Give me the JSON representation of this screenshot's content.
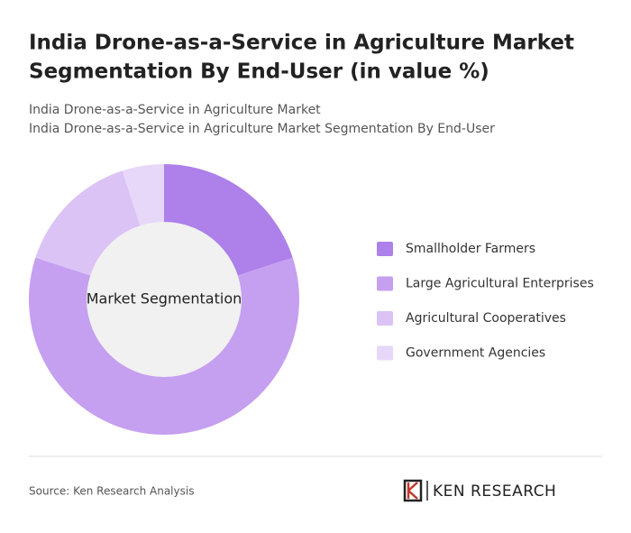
{
  "chart_data": {
    "type": "donut",
    "title": [
      "India Drone-as-a-Service in Agriculture Market",
      "Segmentation By End-User (in value %)"
    ],
    "subtitle": [
      "India Drone-as-a-Service in Agriculture Market",
      "India Drone-as-a-Service in Agriculture Market Segmentation By End-User"
    ],
    "center_label": "Market Segmentation",
    "categories": [
      "Smallholder Farmers",
      "Large Agricultural Enterprises",
      "Agricultural Cooperatives",
      "Government Agencies"
    ],
    "values": [
      20,
      60,
      15,
      5
    ],
    "colors": [
      "#ad80ea",
      "#c59ff0",
      "#dbc3f6",
      "#e7d8f9"
    ]
  },
  "source": "Source: Ken Research Analysis",
  "logo": "KEN RESEARCH"
}
